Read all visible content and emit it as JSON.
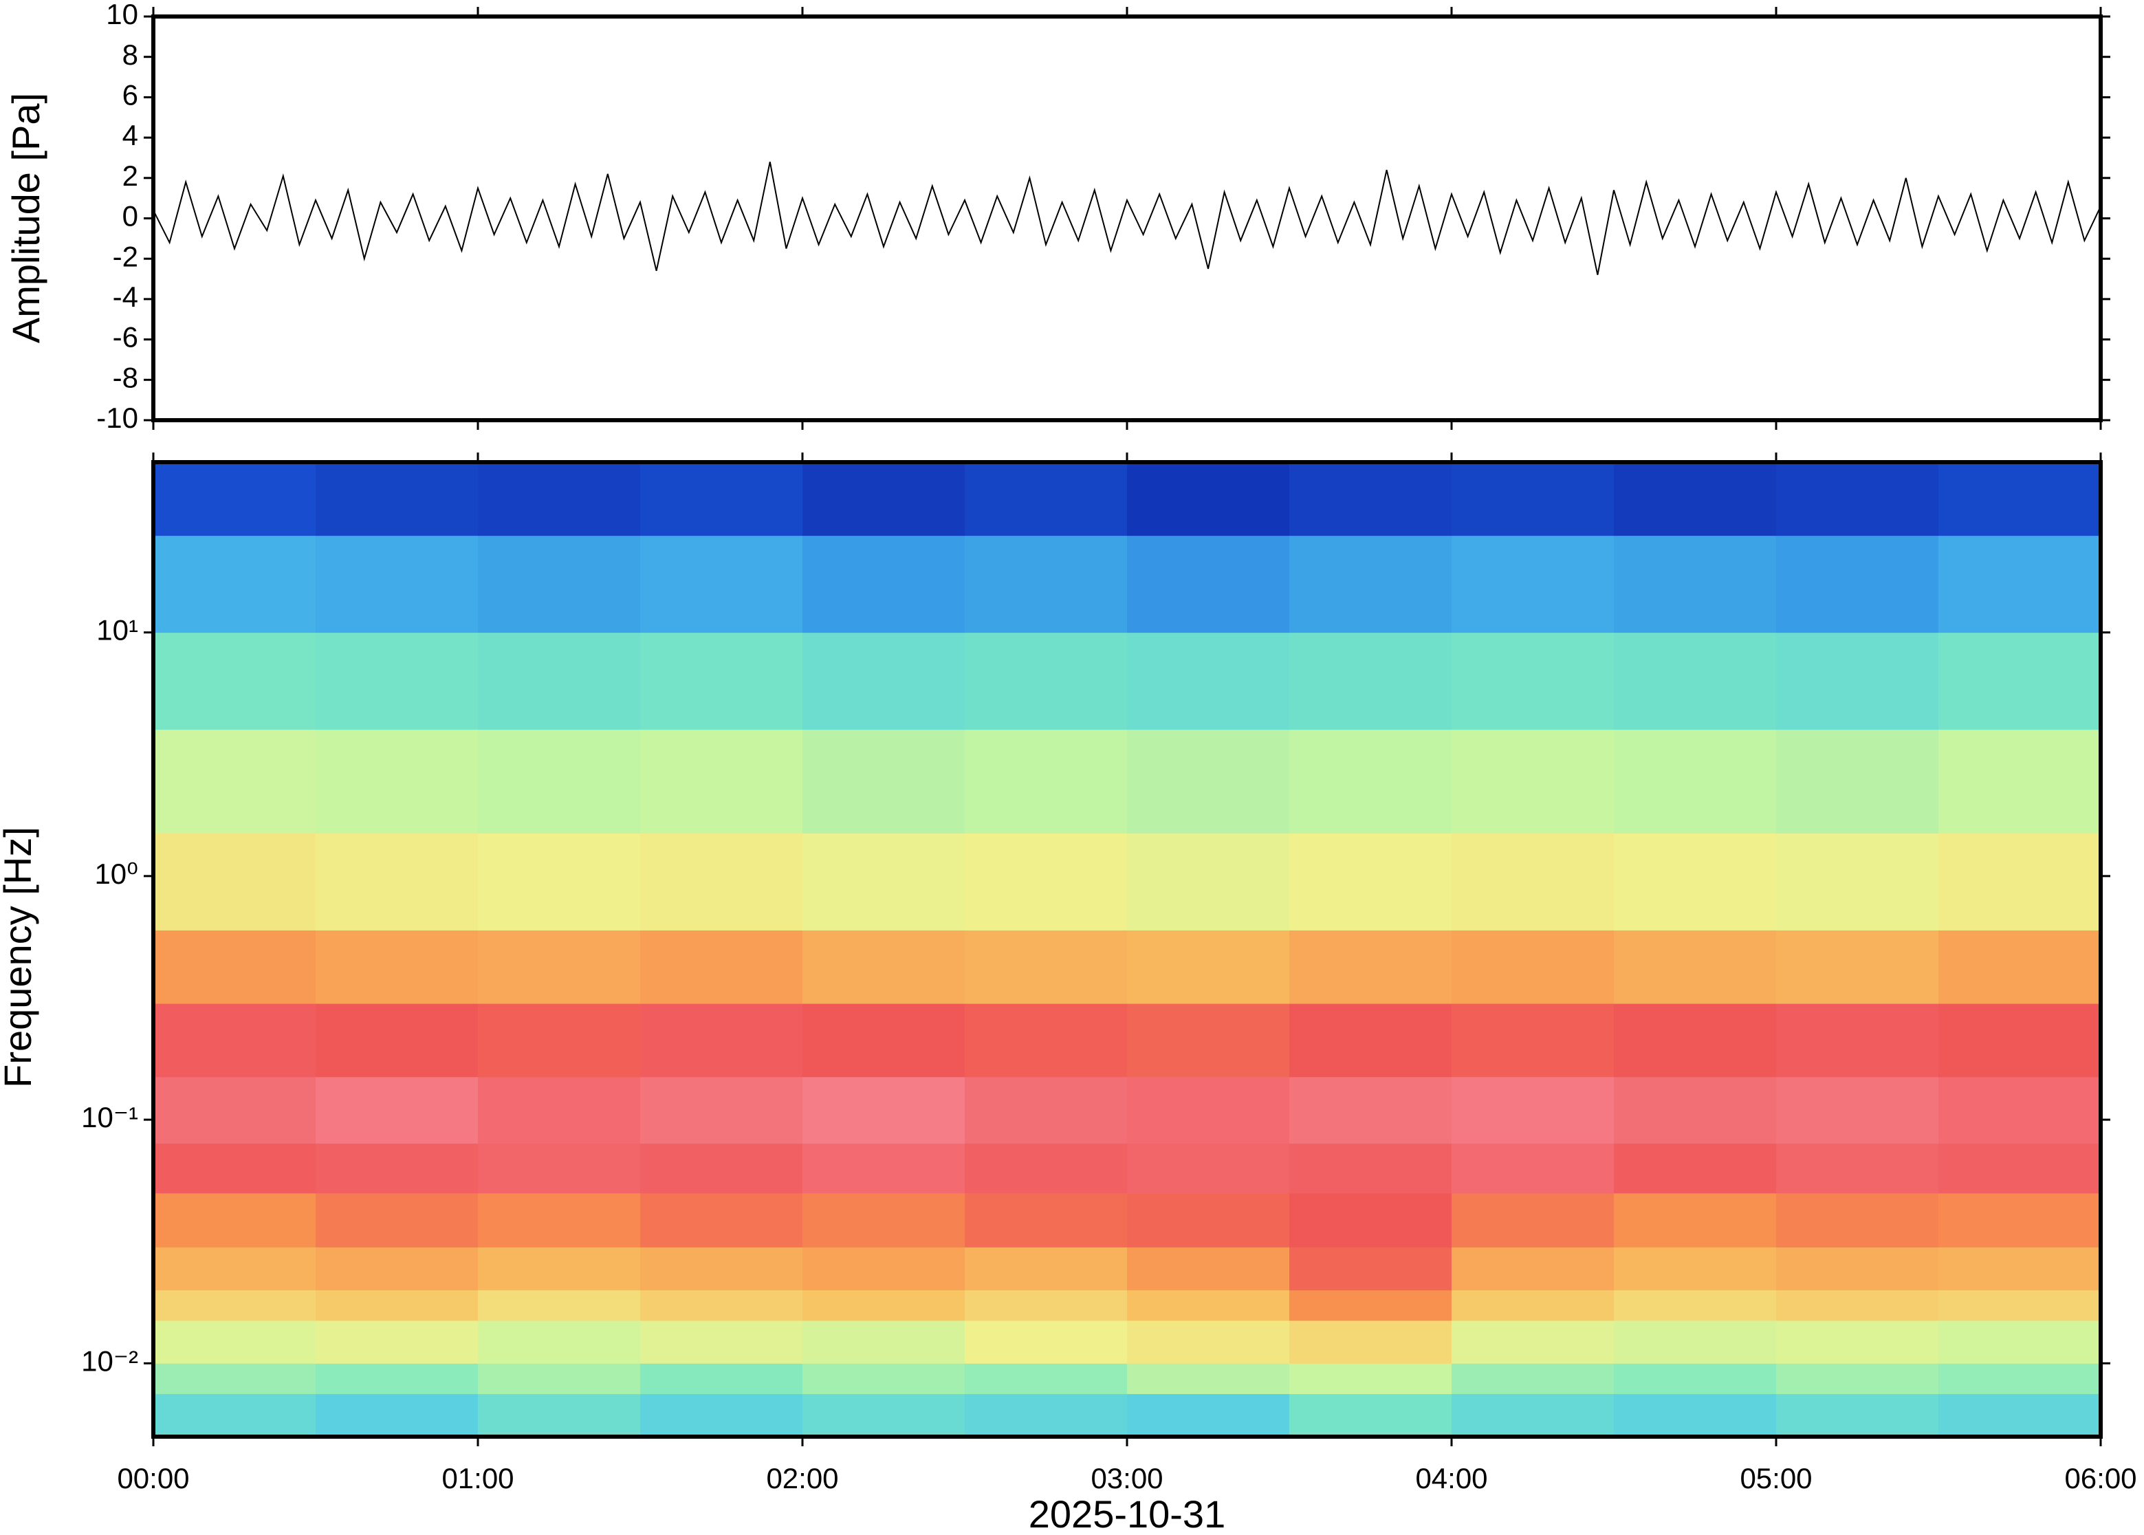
{
  "chart_data": [
    {
      "type": "line",
      "ylabel": "Amplitude [Pa]",
      "color": "#000000",
      "xlim": [
        0,
        360
      ],
      "ylim": [
        -10,
        10
      ],
      "yticks": [
        -10,
        -8,
        -6,
        -4,
        -2,
        0,
        2,
        4,
        6,
        8,
        10
      ],
      "x": [
        0,
        3,
        6,
        9,
        12,
        15,
        18,
        21,
        24,
        27,
        30,
        33,
        36,
        39,
        42,
        45,
        48,
        51,
        54,
        57,
        60,
        63,
        66,
        69,
        72,
        75,
        78,
        81,
        84,
        87,
        90,
        93,
        96,
        99,
        102,
        105,
        108,
        111,
        114,
        117,
        120,
        123,
        126,
        129,
        132,
        135,
        138,
        141,
        144,
        147,
        150,
        153,
        156,
        159,
        162,
        165,
        168,
        171,
        174,
        177,
        180,
        183,
        186,
        189,
        192,
        195,
        198,
        201,
        204,
        207,
        210,
        213,
        216,
        219,
        222,
        225,
        228,
        231,
        234,
        237,
        240,
        243,
        246,
        249,
        252,
        255,
        258,
        261,
        264,
        267,
        270,
        273,
        276,
        279,
        282,
        285,
        288,
        291,
        294,
        297,
        300,
        303,
        306,
        309,
        312,
        315,
        318,
        321,
        324,
        327,
        330,
        333,
        336,
        339,
        342,
        345,
        348,
        351,
        354,
        357,
        360
      ],
      "values": [
        0.4,
        -1.2,
        1.8,
        -0.9,
        1.1,
        -1.5,
        0.7,
        -0.6,
        2.1,
        -1.3,
        0.9,
        -1.0,
        1.4,
        -2.0,
        0.8,
        -0.7,
        1.2,
        -1.1,
        0.6,
        -1.6,
        1.5,
        -0.8,
        1.0,
        -1.2,
        0.9,
        -1.4,
        1.7,
        -0.9,
        2.2,
        -1.0,
        0.8,
        -2.6,
        1.1,
        -0.7,
        1.3,
        -1.2,
        0.9,
        -1.1,
        2.8,
        -1.5,
        1.0,
        -1.3,
        0.7,
        -0.9,
        1.2,
        -1.4,
        0.8,
        -1.0,
        1.6,
        -0.8,
        0.9,
        -1.2,
        1.1,
        -0.7,
        2.0,
        -1.3,
        0.8,
        -1.1,
        1.4,
        -1.6,
        0.9,
        -0.8,
        1.2,
        -1.0,
        0.7,
        -2.5,
        1.3,
        -1.1,
        0.9,
        -1.4,
        1.5,
        -0.9,
        1.1,
        -1.2,
        0.8,
        -1.3,
        2.4,
        -1.0,
        1.6,
        -1.5,
        1.2,
        -0.9,
        1.3,
        -1.7,
        0.9,
        -1.1,
        1.5,
        -1.2,
        1.0,
        -2.8,
        1.4,
        -1.3,
        1.8,
        -1.0,
        0.9,
        -1.4,
        1.2,
        -1.1,
        0.8,
        -1.5,
        1.3,
        -0.9,
        1.7,
        -1.2,
        1.0,
        -1.3,
        0.9,
        -1.1,
        2.0,
        -1.4,
        1.1,
        -0.8,
        1.2,
        -1.6,
        0.9,
        -1.0,
        1.3,
        -1.2,
        1.8,
        -1.1,
        0.6
      ]
    },
    {
      "type": "heatmap",
      "ylabel": "Frequency [Hz]",
      "xlabel": "2025-10-31",
      "xlim": [
        0,
        360
      ],
      "xticks": [
        {
          "value": 0,
          "label": "00:00"
        },
        {
          "value": 60,
          "label": "01:00"
        },
        {
          "value": 120,
          "label": "02:00"
        },
        {
          "value": 180,
          "label": "03:00"
        },
        {
          "value": 240,
          "label": "04:00"
        },
        {
          "value": 300,
          "label": "05:00"
        },
        {
          "value": 360,
          "label": "06:00"
        }
      ],
      "ylim": [
        0.005,
        50
      ],
      "log_y": true,
      "yticks": [
        {
          "value": 0.01,
          "label": "10⁻²"
        },
        {
          "value": 0.1,
          "label": "10⁻¹"
        },
        {
          "value": 1,
          "label": "10⁰"
        },
        {
          "value": 10,
          "label": "10¹"
        }
      ],
      "zlim": [
        0,
        1
      ],
      "colormap": [
        [
          0,
          "#0a1898"
        ],
        [
          0.15,
          "#1a5adc"
        ],
        [
          0.3,
          "#4ec8ec"
        ],
        [
          0.42,
          "#7de8c0"
        ],
        [
          0.52,
          "#c8f5a0"
        ],
        [
          0.6,
          "#f0f08c"
        ],
        [
          0.7,
          "#f8c060"
        ],
        [
          0.8,
          "#f89050"
        ],
        [
          0.88,
          "#f05858"
        ],
        [
          1,
          "#f890a0"
        ]
      ],
      "x_bins": [
        0,
        30,
        60,
        90,
        120,
        150,
        180,
        210,
        240,
        270,
        300,
        330,
        360
      ],
      "y_bins": [
        0.005,
        0.0075,
        0.01,
        0.015,
        0.02,
        0.03,
        0.05,
        0.08,
        0.15,
        0.3,
        0.6,
        1.5,
        4,
        10,
        25,
        50
      ],
      "values": [
        [
          0.36,
          0.33,
          0.38,
          0.34,
          0.37,
          0.35,
          0.33,
          0.4,
          0.36,
          0.34,
          0.37,
          0.35
        ],
        [
          0.46,
          0.44,
          0.48,
          0.43,
          0.47,
          0.45,
          0.5,
          0.52,
          0.46,
          0.44,
          0.47,
          0.45
        ],
        [
          0.56,
          0.58,
          0.54,
          0.57,
          0.55,
          0.6,
          0.62,
          0.65,
          0.57,
          0.55,
          0.56,
          0.54
        ],
        [
          0.66,
          0.68,
          0.64,
          0.67,
          0.69,
          0.66,
          0.7,
          0.8,
          0.68,
          0.65,
          0.67,
          0.66
        ],
        [
          0.73,
          0.75,
          0.72,
          0.74,
          0.76,
          0.73,
          0.78,
          0.86,
          0.75,
          0.72,
          0.74,
          0.73
        ],
        [
          0.8,
          0.83,
          0.81,
          0.84,
          0.82,
          0.85,
          0.86,
          0.88,
          0.83,
          0.8,
          0.82,
          0.81
        ],
        [
          0.89,
          0.9,
          0.91,
          0.9,
          0.92,
          0.9,
          0.91,
          0.9,
          0.92,
          0.89,
          0.91,
          0.9
        ],
        [
          0.93,
          0.95,
          0.92,
          0.94,
          0.96,
          0.93,
          0.92,
          0.94,
          0.95,
          0.93,
          0.94,
          0.92
        ],
        [
          0.89,
          0.88,
          0.87,
          0.89,
          0.88,
          0.87,
          0.86,
          0.88,
          0.87,
          0.88,
          0.89,
          0.88
        ],
        [
          0.78,
          0.76,
          0.75,
          0.77,
          0.74,
          0.73,
          0.72,
          0.75,
          0.76,
          0.74,
          0.73,
          0.76
        ],
        [
          0.62,
          0.61,
          0.6,
          0.61,
          0.59,
          0.6,
          0.58,
          0.6,
          0.61,
          0.6,
          0.59,
          0.61
        ],
        [
          0.53,
          0.52,
          0.51,
          0.52,
          0.5,
          0.51,
          0.5,
          0.51,
          0.52,
          0.51,
          0.5,
          0.52
        ],
        [
          0.41,
          0.4,
          0.39,
          0.4,
          0.38,
          0.39,
          0.38,
          0.39,
          0.4,
          0.39,
          0.38,
          0.4
        ],
        [
          0.27,
          0.26,
          0.25,
          0.26,
          0.24,
          0.25,
          0.23,
          0.25,
          0.26,
          0.25,
          0.24,
          0.26
        ],
        [
          0.12,
          0.1,
          0.09,
          0.11,
          0.08,
          0.1,
          0.07,
          0.09,
          0.1,
          0.08,
          0.09,
          0.11
        ]
      ]
    }
  ]
}
